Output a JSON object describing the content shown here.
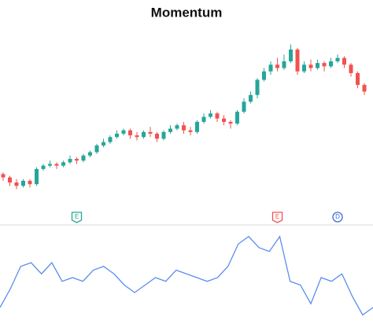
{
  "chart_data": [
    {
      "type": "candlestick",
      "title": "Momentum",
      "open": [
        19,
        17,
        14,
        12,
        15,
        13,
        22,
        24,
        25,
        24,
        26,
        28,
        27,
        30,
        32,
        36,
        38,
        41,
        43,
        45,
        42,
        41,
        44,
        43,
        40,
        44,
        46,
        48,
        45,
        44,
        50,
        53,
        55,
        52,
        50,
        49,
        56,
        62,
        66,
        75,
        80,
        84,
        82,
        86,
        93,
        80,
        84,
        82,
        85,
        83,
        86,
        88,
        84,
        79,
        72
      ],
      "high": [
        20,
        18,
        16,
        16,
        16,
        23,
        25,
        27,
        26,
        27,
        30,
        29,
        31,
        33,
        37,
        40,
        42,
        45,
        46,
        46,
        44,
        45,
        47,
        44,
        45,
        48,
        49,
        50,
        47,
        51,
        55,
        57,
        56,
        54,
        51,
        57,
        64,
        68,
        76,
        82,
        86,
        88,
        90,
        96,
        94,
        86,
        87,
        87,
        86,
        88,
        90,
        89,
        85,
        80,
        73
      ],
      "low": [
        15,
        12,
        10,
        11,
        11,
        12,
        21,
        23,
        22,
        23,
        25,
        25,
        26,
        29,
        31,
        35,
        37,
        40,
        42,
        40,
        39,
        40,
        41,
        38,
        39,
        43,
        45,
        43,
        42,
        43,
        49,
        52,
        50,
        48,
        46,
        48,
        55,
        61,
        64,
        74,
        78,
        80,
        81,
        85,
        78,
        79,
        80,
        81,
        80,
        82,
        85,
        82,
        77,
        70,
        66
      ],
      "close": [
        17,
        14,
        12,
        15,
        13,
        22,
        24,
        25,
        24,
        26,
        28,
        27,
        30,
        32,
        36,
        38,
        41,
        43,
        45,
        42,
        41,
        44,
        43,
        40,
        44,
        46,
        48,
        45,
        44,
        50,
        53,
        55,
        52,
        50,
        49,
        56,
        62,
        66,
        75,
        80,
        84,
        82,
        86,
        93,
        80,
        84,
        82,
        85,
        83,
        86,
        88,
        84,
        79,
        72,
        68
      ],
      "up_color": "#26a69a",
      "down_color": "#ef5350",
      "ylim": [
        0,
        100
      ],
      "markers": [
        {
          "label": "E",
          "index": 11,
          "color": "#26a69a"
        },
        {
          "label": "E",
          "index": 41,
          "color": "#ef5350"
        },
        {
          "label": "D",
          "index": 50,
          "color": "#3f6ad8"
        }
      ]
    },
    {
      "type": "line",
      "color": "#5b8def",
      "values": [
        -8,
        -3,
        3,
        4,
        1,
        4,
        -1,
        0,
        -1,
        2,
        3,
        1,
        -2,
        -4,
        -2,
        0,
        -1,
        2,
        1,
        0,
        -1,
        0,
        3,
        9,
        11,
        8,
        7,
        11,
        -1,
        -2,
        -7,
        0,
        -1,
        1,
        -5,
        -10,
        -8
      ],
      "ylim": [
        -12,
        12
      ]
    }
  ]
}
